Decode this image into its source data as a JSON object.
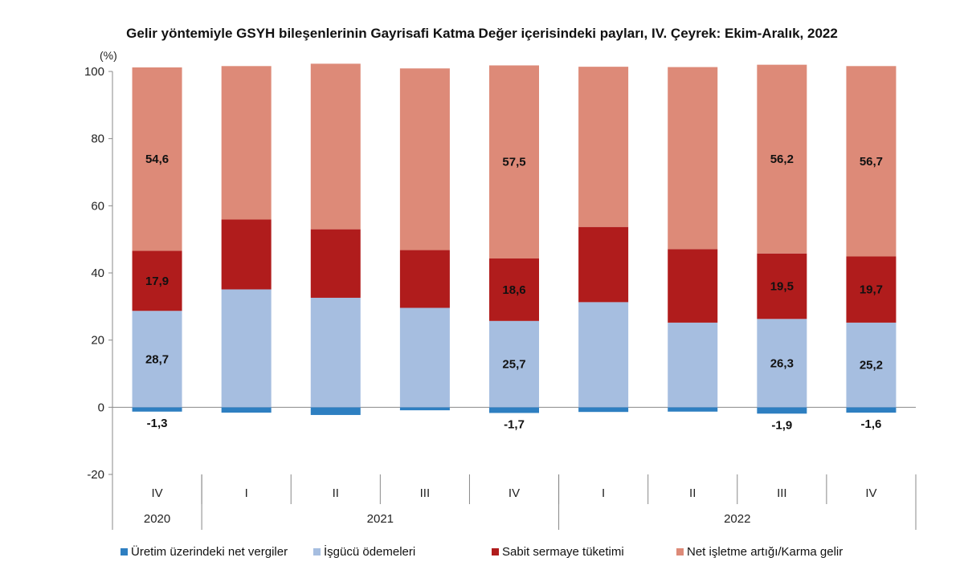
{
  "chart_data": {
    "type": "bar",
    "stacked": true,
    "title": "Gelir yöntemiyle GSYH bileşenlerinin Gayrisafi Katma Değer içerisindeki payları, IV. Çeyrek: Ekim-Aralık, 2022",
    "ylabel": "(%)",
    "ylim": [
      -20,
      100
    ],
    "yticks": [
      100,
      80,
      60,
      40,
      20,
      0,
      -20
    ],
    "categories": [
      "IV",
      "I",
      "II",
      "III",
      "IV",
      "I",
      "II",
      "III",
      "IV"
    ],
    "year_groups": [
      {
        "label": "2020",
        "count": 1
      },
      {
        "label": "2021",
        "count": 4
      },
      {
        "label": "2022",
        "count": 4
      }
    ],
    "series": [
      {
        "name": "Üretim üzerindeki net vergiler",
        "color": "#2e7fc1",
        "values": [
          -1.3,
          -1.6,
          -2.3,
          -0.9,
          -1.7,
          -1.4,
          -1.3,
          -1.9,
          -1.6
        ]
      },
      {
        "name": "İşgücü ödemeleri",
        "color": "#a6bee0",
        "values": [
          28.7,
          35.1,
          32.6,
          29.6,
          25.7,
          31.3,
          25.2,
          26.3,
          25.2
        ]
      },
      {
        "name": "Sabit sermaye tüketimi",
        "color": "#b01c1c",
        "values": [
          17.9,
          20.8,
          20.4,
          17.2,
          18.6,
          22.4,
          21.9,
          19.5,
          19.7
        ]
      },
      {
        "name": "Net işletme artığı/Karma gelir",
        "color": "#dd8a78",
        "values": [
          54.6,
          45.7,
          49.3,
          54.1,
          57.5,
          47.7,
          54.2,
          56.2,
          56.7
        ]
      }
    ],
    "data_labels": [
      {
        "series": 3,
        "index": 0,
        "text": "54,6"
      },
      {
        "series": 3,
        "index": 4,
        "text": "57,5"
      },
      {
        "series": 3,
        "index": 7,
        "text": "56,2"
      },
      {
        "series": 3,
        "index": 8,
        "text": "56,7"
      },
      {
        "series": 2,
        "index": 0,
        "text": "17,9"
      },
      {
        "series": 2,
        "index": 4,
        "text": "18,6"
      },
      {
        "series": 2,
        "index": 7,
        "text": "19,5"
      },
      {
        "series": 2,
        "index": 8,
        "text": "19,7"
      },
      {
        "series": 1,
        "index": 0,
        "text": "28,7"
      },
      {
        "series": 1,
        "index": 4,
        "text": "25,7"
      },
      {
        "series": 1,
        "index": 7,
        "text": "26,3"
      },
      {
        "series": 1,
        "index": 8,
        "text": "25,2"
      },
      {
        "series": 0,
        "index": 0,
        "text": "-1,3"
      },
      {
        "series": 0,
        "index": 4,
        "text": "-1,7"
      },
      {
        "series": 0,
        "index": 7,
        "text": "-1,9"
      },
      {
        "series": 0,
        "index": 8,
        "text": "-1,6"
      }
    ],
    "legend_position": "bottom",
    "grid": false
  }
}
